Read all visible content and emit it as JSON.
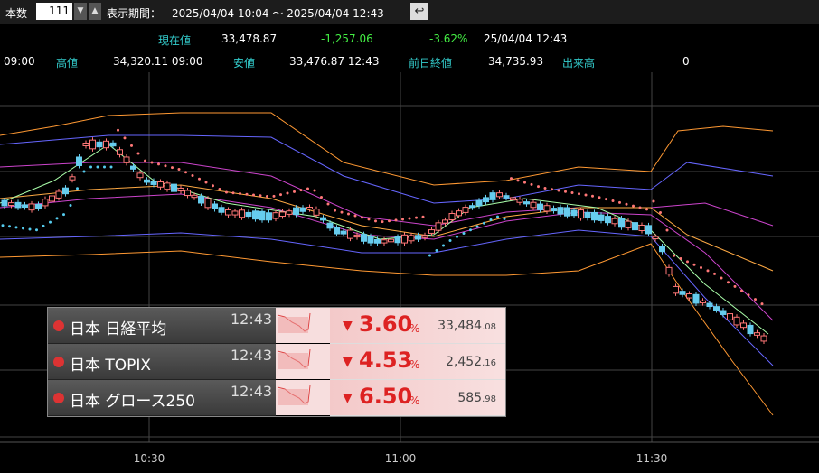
{
  "toolbar": {
    "count_label": "本数",
    "count": "111",
    "period_label": "表示期間：",
    "period": "2025/04/04 10:04 ～ 2025/04/04 12:43"
  },
  "quote": {
    "current_label": "現在値",
    "current": "33,478.87",
    "change": "-1,257.06",
    "change_pct": "-3.62%",
    "datetime": "25/04/04 12:43",
    "open_time": "09:00",
    "high_label": "高値",
    "high": "34,320.11 09:00",
    "low_label": "安値",
    "low": "33,476.87 12:43",
    "prev_close_label": "前日終値",
    "prev_close": "34,735.93",
    "volume_label": "出来高",
    "volume": "0"
  },
  "x_axis": [
    "10:30",
    "11:00",
    "11:30"
  ],
  "indices": [
    {
      "name": "日本 日経平均",
      "time": "12:43",
      "change": "3.60",
      "unit": "%",
      "value_int": "33,484",
      "value_dec": ".08"
    },
    {
      "name": "日本 TOPIX",
      "time": "12:43",
      "change": "4.53",
      "unit": "%",
      "value_int": "2,452",
      "value_dec": ".16"
    },
    {
      "name": "日本 グロース250",
      "time": "12:43",
      "change": "6.50",
      "unit": "%",
      "value_int": "585",
      "value_dec": ".98"
    }
  ]
}
